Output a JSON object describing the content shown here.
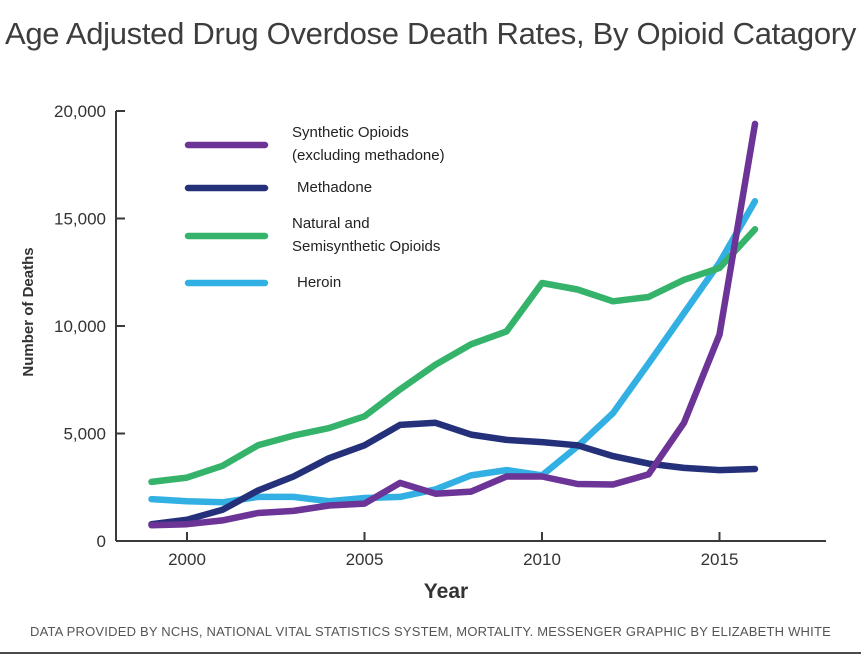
{
  "chart_data": {
    "type": "line",
    "title": "Age Adjusted Drug Overdose Death Rates, By Opioid Catagory",
    "xlabel": "Year",
    "ylabel": "Number of Deaths",
    "xlim": [
      1998,
      2018
    ],
    "ylim": [
      0,
      20000
    ],
    "xticks": [
      2000,
      2005,
      2010,
      2015
    ],
    "xtick_labels": [
      "2000",
      "2005",
      "2010",
      "2015"
    ],
    "yticks": [
      0,
      5000,
      10000,
      15000,
      20000
    ],
    "ytick_labels": [
      "0",
      "5,000",
      "10,000",
      "15,000",
      "20,000"
    ],
    "x": [
      1999,
      2000,
      2001,
      2002,
      2003,
      2004,
      2005,
      2006,
      2007,
      2008,
      2009,
      2010,
      2011,
      2012,
      2013,
      2014,
      2015,
      2016
    ],
    "series": [
      {
        "name": "Synthetic Opioids (excluding methadone)",
        "legend_lines": [
          "Synthetic Opioids",
          "(excluding methadone)"
        ],
        "color": "#6b3496",
        "values": [
          730,
          780,
          960,
          1300,
          1400,
          1650,
          1740,
          2700,
          2200,
          2300,
          3000,
          3000,
          2650,
          2630,
          3100,
          5500,
          9600,
          19400
        ]
      },
      {
        "name": "Methadone",
        "legend_lines": [
          "Methadone"
        ],
        "color": "#24317a",
        "values": [
          780,
          990,
          1450,
          2350,
          3000,
          3850,
          4450,
          5400,
          5500,
          4950,
          4700,
          4600,
          4450,
          3950,
          3600,
          3400,
          3300,
          3350
        ]
      },
      {
        "name": "Natural and Semisynthetic Opioids",
        "legend_lines": [
          "Natural and",
          "Semisynthetic Opioids"
        ],
        "color": "#35b36b",
        "values": [
          2750,
          2950,
          3500,
          4450,
          4900,
          5250,
          5800,
          7050,
          8200,
          9150,
          9750,
          12000,
          11700,
          11150,
          11350,
          12150,
          12700,
          14500
        ]
      },
      {
        "name": "Heroin",
        "legend_lines": [
          "Heroin"
        ],
        "color": "#33b0e3",
        "values": [
          1950,
          1850,
          1800,
          2050,
          2050,
          1850,
          2000,
          2050,
          2400,
          3050,
          3300,
          3050,
          4400,
          5950,
          8250,
          10600,
          12950,
          15800
        ]
      }
    ]
  },
  "footer": {
    "note": "DATA PROVIDED BY NCHS, NATIONAL VITAL STATISTICS SYSTEM, MORTALITY. MESSENGER GRAPHIC BY ELIZABETH WHITE"
  }
}
